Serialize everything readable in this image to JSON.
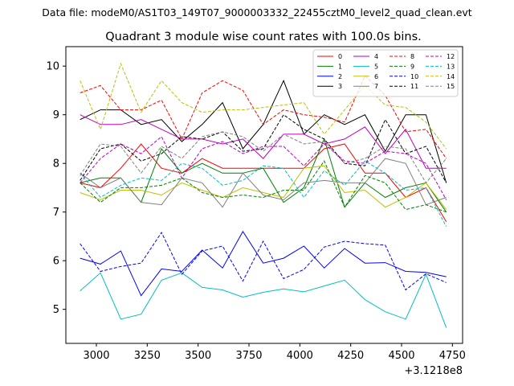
{
  "chart_data": {
    "type": "line",
    "suptitle": "Data file: modeM0/AS1T03_149T07_9000003332_22455cztM0_level2_quad_clean.evt",
    "title": "Quadrant 3 module wise count rates with 100.0s bins.",
    "xlabel": "",
    "ylabel": "",
    "x_offset_label": "+3.1218e8",
    "xlim": [
      2850,
      4800
    ],
    "ylim": [
      4.3,
      10.4
    ],
    "x_ticks": [
      3000,
      3250,
      3500,
      3750,
      4000,
      4250,
      4500,
      4750
    ],
    "y_ticks": [
      5,
      6,
      7,
      8,
      9,
      10
    ],
    "x": [
      2920,
      3020,
      3120,
      3220,
      3320,
      3420,
      3520,
      3620,
      3720,
      3820,
      3920,
      4020,
      4120,
      4220,
      4320,
      4420,
      4520,
      4620,
      4720
    ],
    "legend_position": "top-right",
    "series": [
      {
        "name": "0",
        "color": "#ff0000",
        "style": "solid",
        "values": [
          7.6,
          7.5,
          7.9,
          8.4,
          7.9,
          7.8,
          8.1,
          7.9,
          7.9,
          7.9,
          7.9,
          7.9,
          8.3,
          8.4,
          7.8,
          7.8,
          7.3,
          7.5,
          6.8
        ]
      },
      {
        "name": "1",
        "color": "#008000",
        "style": "solid",
        "values": [
          7.6,
          7.7,
          7.7,
          7.2,
          8.3,
          7.8,
          8.0,
          7.8,
          7.8,
          7.9,
          7.2,
          7.5,
          8.5,
          7.1,
          7.6,
          7.3,
          7.5,
          7.6,
          7.0
        ]
      },
      {
        "name": "2",
        "color": "#0000ff",
        "style": "solid",
        "values": [
          6.05,
          5.93,
          6.2,
          5.28,
          5.83,
          5.78,
          6.22,
          5.85,
          6.6,
          5.95,
          6.05,
          6.3,
          5.85,
          6.25,
          5.95,
          5.96,
          5.78,
          5.76,
          5.67
        ]
      },
      {
        "name": "3",
        "color": "#000000",
        "style": "solid",
        "values": [
          8.9,
          9.1,
          9.1,
          8.8,
          8.9,
          8.45,
          8.8,
          9.25,
          8.3,
          8.8,
          9.7,
          8.6,
          9.0,
          8.8,
          9.0,
          8.25,
          9.0,
          9.0,
          7.6
        ]
      },
      {
        "name": "4",
        "color": "#bf00bf",
        "style": "solid",
        "values": [
          9.0,
          8.8,
          8.8,
          8.9,
          8.7,
          8.5,
          8.5,
          8.4,
          8.5,
          8.1,
          8.6,
          8.6,
          8.4,
          8.5,
          8.75,
          8.2,
          8.7,
          7.9,
          7.9
        ]
      },
      {
        "name": "5",
        "color": "#00bfbf",
        "style": "solid",
        "values": [
          5.38,
          5.75,
          4.8,
          4.9,
          5.6,
          5.75,
          5.45,
          5.4,
          5.25,
          5.35,
          5.42,
          5.36,
          5.48,
          5.6,
          5.2,
          4.95,
          4.8,
          5.72,
          4.62
        ]
      },
      {
        "name": "6",
        "color": "#bfbf00",
        "style": "solid",
        "values": [
          7.4,
          7.25,
          7.45,
          7.45,
          7.35,
          7.6,
          7.45,
          7.3,
          7.5,
          7.4,
          7.3,
          7.9,
          7.95,
          7.4,
          7.45,
          7.1,
          7.3,
          7.6,
          7.05
        ]
      },
      {
        "name": "7",
        "color": "#808080",
        "style": "solid",
        "values": [
          7.8,
          7.5,
          7.7,
          7.2,
          7.15,
          7.7,
          7.6,
          7.1,
          7.8,
          7.35,
          7.25,
          7.6,
          7.65,
          7.6,
          7.6,
          8.1,
          8.0,
          7.15,
          7.3
        ]
      },
      {
        "name": "8",
        "color": "#ff0000",
        "style": "dashed",
        "values": [
          9.45,
          9.6,
          9.1,
          9.1,
          9.3,
          8.5,
          9.45,
          9.7,
          9.5,
          8.8,
          9.1,
          9.0,
          8.95,
          8.85,
          9.8,
          9.4,
          8.65,
          8.7,
          8.1
        ]
      },
      {
        "name": "9",
        "color": "#008000",
        "style": "dashed",
        "values": [
          7.6,
          7.2,
          7.5,
          7.5,
          7.55,
          7.7,
          7.4,
          7.3,
          7.35,
          7.3,
          7.45,
          7.45,
          8.05,
          7.1,
          7.75,
          7.6,
          7.05,
          7.15,
          7.0
        ]
      },
      {
        "name": "10",
        "color": "#0000ff",
        "style": "dashed",
        "values": [
          6.35,
          5.78,
          5.88,
          5.95,
          6.58,
          5.72,
          6.2,
          6.3,
          5.58,
          6.4,
          5.63,
          5.82,
          6.28,
          6.4,
          6.35,
          6.32,
          5.4,
          5.73,
          5.55
        ]
      },
      {
        "name": "11",
        "color": "#000000",
        "style": "dashed",
        "values": [
          7.65,
          8.3,
          8.4,
          8.05,
          8.2,
          8.55,
          8.5,
          8.65,
          8.25,
          8.3,
          9.0,
          8.7,
          8.5,
          8.0,
          7.95,
          8.9,
          8.2,
          8.35,
          7.6
        ]
      },
      {
        "name": "12",
        "color": "#bf00bf",
        "style": "dashed",
        "values": [
          7.6,
          8.1,
          8.4,
          8.2,
          8.55,
          7.7,
          8.3,
          8.45,
          8.2,
          8.35,
          8.35,
          7.95,
          8.4,
          8.05,
          8.0,
          8.25,
          8.2,
          8.0,
          7.25
        ]
      },
      {
        "name": "13",
        "color": "#00bfbf",
        "style": "dashed",
        "values": [
          7.8,
          7.3,
          7.55,
          7.7,
          7.65,
          8.0,
          7.9,
          7.55,
          7.65,
          7.95,
          7.9,
          7.3,
          7.85,
          7.55,
          8.05,
          7.8,
          7.45,
          7.5,
          6.7
        ]
      },
      {
        "name": "14",
        "color": "#bfbf00",
        "style": "dashed",
        "values": [
          9.7,
          8.7,
          10.05,
          9.05,
          9.7,
          9.25,
          9.05,
          9.1,
          9.1,
          9.15,
          9.2,
          9.25,
          8.6,
          9.1,
          9.6,
          9.2,
          9.15,
          8.85,
          8.3
        ]
      },
      {
        "name": "15",
        "color": "#808080",
        "style": "dashed",
        "values": [
          7.75,
          8.4,
          8.35,
          7.8,
          8.35,
          8.1,
          8.55,
          8.65,
          8.55,
          8.25,
          8.6,
          8.4,
          8.45,
          8.0,
          8.1,
          8.35,
          8.3,
          7.6,
          8.1
        ]
      }
    ]
  }
}
